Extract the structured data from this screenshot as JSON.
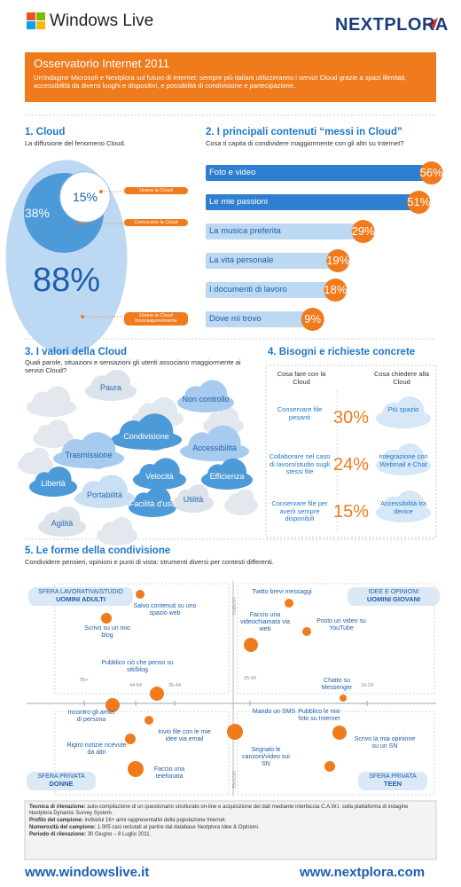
{
  "header": {
    "brand_left": "Windows Live",
    "brand_right": "NEXTPLORA"
  },
  "intro": {
    "title": "Osservatorio Internet 2011",
    "text": "Un'indagine Microsoft e Nextplora sul futuro di Internet: sempre più italiani utilizzeranno i servizi Cloud grazie a spazi illimitati, accessibilità da diversi luoghi e dispositivi, e possibilità di condivisione e partecipazione."
  },
  "cloud": {
    "title": "1. Cloud",
    "subtitle": "La diffusione del fenomeno Cloud.",
    "rings": [
      {
        "value": 15,
        "value_label": "15%",
        "caption": "Usano la Cloud"
      },
      {
        "value": 38,
        "value_label": "38%",
        "caption": "Conoscono la Cloud"
      },
      {
        "value": 88,
        "value_label": "88%",
        "caption": "Usano la Cloud inconsapevolmente"
      }
    ]
  },
  "contents": {
    "title": "2. I principali contenuti “messi in Cloud”",
    "subtitle": "Cosa ti capita di condividere maggiormente con gli altri su Internet?",
    "items": [
      {
        "label": "Foto e video",
        "value": 56,
        "value_label": "56%"
      },
      {
        "label": "Le mie passioni",
        "value": 51,
        "value_label": "51%"
      },
      {
        "label": "La musica preferita",
        "value": 29,
        "value_label": "29%"
      },
      {
        "label": "La vita personale",
        "value": 19,
        "value_label": "19%"
      },
      {
        "label": "I documenti di lavoro",
        "value": 18,
        "value_label": "18%"
      },
      {
        "label": "Dove mi trovo",
        "value": 9,
        "value_label": "9%"
      }
    ]
  },
  "values": {
    "title": "3. I valori della Cloud",
    "subtitle": "Quali parole, situazioni e sensazioni gli utenti associano maggiormente ai servizi Cloud?",
    "words": [
      "Paura",
      "Non controllo",
      "Condivisione",
      "Accessibilità",
      "Trasmissione",
      "Libertà",
      "Velocità",
      "Efficienza",
      "Portabilità",
      "Facilità d'uso",
      "Utilità",
      "Agilità"
    ]
  },
  "needs": {
    "title": "4. Bisogni e richieste concrete",
    "headers": [
      "Cosa fare con la Cloud",
      "Cosa chiedere alla Cloud"
    ],
    "rows": [
      {
        "action": "Conservare file pesanti",
        "share": "30%",
        "request": "Più spazio"
      },
      {
        "action": "Collaborare nel caso di lavoro/studio sugli stessi file",
        "share": "24%",
        "request": "Integrazione con Webmail e Chat"
      },
      {
        "action": "Conservare file per averli sempre disponibili",
        "share": "15%",
        "request": "Accessibilità tra device"
      }
    ]
  },
  "sharing": {
    "title": "5. Le forme della condivisione",
    "subtitle": "Condividere pensieri, opinioni e punti di vista: strumenti diversi per contesti differenti.",
    "quadrants": [
      {
        "label": "SFERA LAVORATIVA/STUDIO",
        "group": "UOMINI ADULTI"
      },
      {
        "label": "IDEE E OPINIONI",
        "group": "UOMINI GIOVANI"
      },
      {
        "label": "SFERA PRIVATA",
        "group": "DONNE"
      },
      {
        "label": "SFERA PRIVATA",
        "group": "TEEN"
      }
    ],
    "axis": {
      "top": "UOMINI",
      "bottom": "DONNE"
    },
    "ages": [
      "55+",
      "44-54",
      "35-44",
      "25-34",
      "16-24"
    ],
    "activities": [
      "Salvo contenuti su uno spazio web",
      "Scrivo su un mio blog",
      "Twitto brevi messaggi",
      "Faccio una videochiamata via web",
      "Posto un video su YouTube",
      "Pubblico ciò che penso su siti/blog",
      "Chatto su Messenger",
      "Incontro gli amici di persona",
      "Invio file con le mie idee via email",
      "Rigiro notizie ricevute da altri",
      "Faccio una telefonata",
      "Mando un SMS",
      "Segnalo le canzoni/video sui SN",
      "Pubblico le mie foto su Internet",
      "Scrivo la mia opinione su un SN"
    ]
  },
  "footer": {
    "notes": [
      {
        "term": "Tecnica di rilevazione:",
        "text": "auto-compilazione di un questionario strutturato on-line e acquisizione dei dati mediante interfaccia C.A.W.I. sulla piattaforma di indagine Nextplora Dynamic Survey System."
      },
      {
        "term": "Profilo del campione:",
        "text": "individui 16+ anni rappresentativi della popolazione Internet."
      },
      {
        "term": "Numerosità del campione:",
        "text": "1.005 casi  reclutati al partire dal database Nextplora Idee & Opinioni."
      },
      {
        "term": "Periodo di rilevazione:",
        "text": "30 Giugno – 8 Luglio 2011."
      }
    ],
    "links": [
      "www.windowslive.it",
      "www.nextplora.com"
    ]
  }
}
